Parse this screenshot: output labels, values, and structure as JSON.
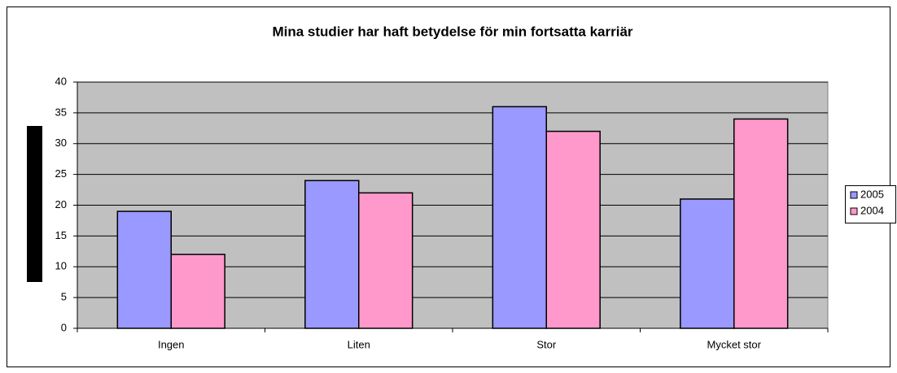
{
  "chart_data": {
    "type": "bar",
    "title": "Mina studier har haft betydelse för min fortsatta karriär",
    "categories": [
      "Ingen",
      "Liten",
      "Stor",
      "Mycket stor"
    ],
    "series": [
      {
        "name": "2005",
        "color": "#9999ff",
        "values": [
          19,
          24,
          36,
          21
        ]
      },
      {
        "name": "2004",
        "color": "#ff99cc",
        "values": [
          12,
          22,
          32,
          34
        ]
      }
    ],
    "ylim": [
      0,
      40
    ],
    "yticks": [
      0,
      5,
      10,
      15,
      20,
      25,
      30,
      35,
      40
    ],
    "grid": true,
    "legend": "right"
  }
}
